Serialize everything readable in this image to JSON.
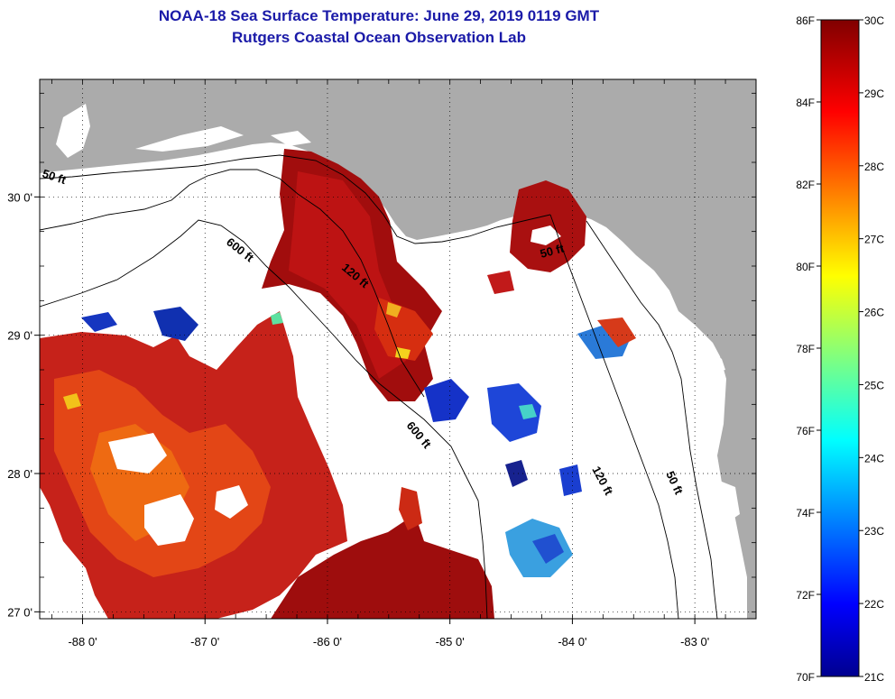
{
  "header": {
    "title": "NOAA-18 Sea Surface Temperature:  June 29, 2019 0119 GMT",
    "subtitle": "Rutgers Coastal Ocean Observation Lab"
  },
  "map": {
    "lon_range": [
      -88.35,
      -82.5
    ],
    "lat_range": [
      26.95,
      30.85
    ],
    "lat_ticks": [
      {
        "value": 30,
        "label": "30 0'"
      },
      {
        "value": 29,
        "label": "29 0'"
      },
      {
        "value": 28,
        "label": "28 0'"
      },
      {
        "value": 27,
        "label": "27 0'"
      }
    ],
    "lon_ticks": [
      {
        "value": -88,
        "label": "-88 0'"
      },
      {
        "value": -87,
        "label": "-87 0'"
      },
      {
        "value": -86,
        "label": "-86 0'"
      },
      {
        "value": -85,
        "label": "-85 0'"
      },
      {
        "value": -84,
        "label": "-84 0'"
      },
      {
        "value": -83,
        "label": "-83 0'"
      }
    ],
    "contour_labels": [
      "50 ft",
      "600 ft",
      "120 ft",
      "50 ft",
      "600 ft",
      "120 ft",
      "50 ft"
    ],
    "colors": {
      "land": "#ababab",
      "no_data": "#ffffff",
      "frame": "#000000"
    }
  },
  "colorbar": {
    "fahrenheit_labels": [
      "86F",
      "84F",
      "82F",
      "80F",
      "78F",
      "76F",
      "74F",
      "72F",
      "70F"
    ],
    "celsius_labels": [
      "30C",
      "29C",
      "28C",
      "27C",
      "26C",
      "25C",
      "24C",
      "23C",
      "22C",
      "21C"
    ],
    "range_c": [
      21,
      30
    ],
    "range_f": [
      70,
      86
    ],
    "scale": "jet"
  }
}
